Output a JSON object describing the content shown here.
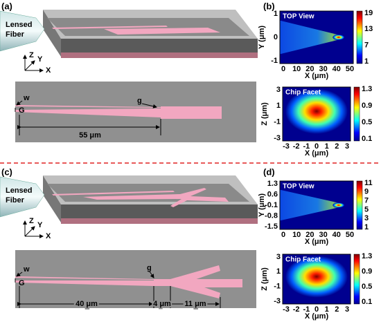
{
  "panel_a": {
    "label": "(a)",
    "fiber": [
      "Lensed",
      "Fiber"
    ],
    "axes": [
      "Z",
      "Y",
      "X"
    ],
    "w": "w",
    "G": "G",
    "g": "g",
    "length": "55 μm"
  },
  "panel_b": {
    "label": "(b)",
    "top": {
      "title": "TOP View",
      "ylabel": "Y (μm)",
      "xlabel": "X (μm)",
      "yticks": [
        1,
        0,
        -1
      ],
      "xticks": [
        0,
        10,
        20,
        30,
        40,
        50
      ],
      "cbar": [
        19,
        13,
        7,
        1
      ]
    },
    "facet": {
      "title": "Chip Facet",
      "ylabel": "Z (μm)",
      "xlabel": "X (μm)",
      "yticks": [
        3,
        1,
        -1,
        -3
      ],
      "xticks": [
        -3,
        -2,
        -1,
        0,
        1,
        2,
        3
      ],
      "cbar": [
        1.3,
        0.9,
        0.5,
        0.1
      ]
    }
  },
  "panel_c": {
    "label": "(c)",
    "fiber": [
      "Lensed",
      "Fiber"
    ],
    "axes": [
      "Z",
      "Y",
      "X"
    ],
    "w": "w",
    "G": "G",
    "g": "g",
    "lengths": [
      "40 μm",
      "4 μm",
      "11 μm"
    ]
  },
  "panel_d": {
    "label": "(d)",
    "top": {
      "title": "TOP View",
      "ylabel": "Y (μm)",
      "xlabel": "X (μm)",
      "yticks": [
        1.3,
        0.6,
        -0.1,
        -0.8,
        -1.5
      ],
      "xticks": [
        0,
        10,
        20,
        30,
        40,
        50
      ],
      "cbar": [
        11,
        9,
        7,
        5,
        3,
        1
      ]
    },
    "facet": {
      "title": "Chip Facet",
      "ylabel": "Z (μm)",
      "xlabel": "X (μm)",
      "yticks": [
        3,
        1,
        -1,
        -3
      ],
      "xticks": [
        -3,
        -2,
        -1,
        0,
        1,
        2,
        3
      ],
      "cbar": [
        1.3,
        0.9,
        0.5,
        0.1
      ]
    }
  }
}
